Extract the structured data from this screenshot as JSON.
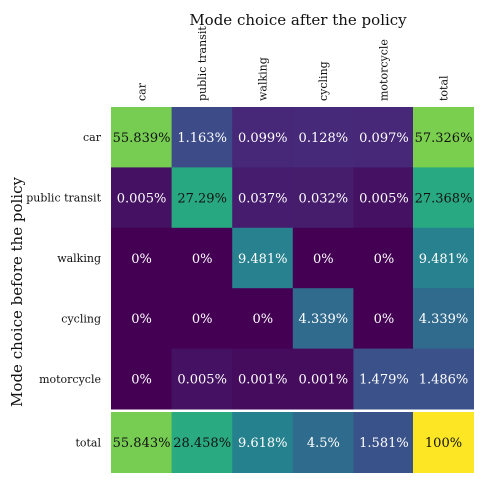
{
  "chart_data": {
    "type": "heatmap",
    "title": "Mode choice after the policy",
    "ylabel": "Mode choice before the policy",
    "columns": [
      "car",
      "public transit",
      "walking",
      "cycling",
      "motorcycle"
    ],
    "rows": [
      "car",
      "public transit",
      "walking",
      "cycling",
      "motorcycle"
    ],
    "total_label": "total",
    "values": [
      [
        55.839,
        1.163,
        0.099,
        0.128,
        0.097
      ],
      [
        0.005,
        27.29,
        0.037,
        0.032,
        0.005
      ],
      [
        0,
        0,
        9.481,
        0,
        0
      ],
      [
        0,
        0,
        0,
        4.339,
        0
      ],
      [
        0,
        0.005,
        0.001,
        0.001,
        1.479
      ]
    ],
    "cell_labels": [
      [
        "55.839%",
        "1.163%",
        "0.099%",
        "0.128%",
        "0.097%"
      ],
      [
        "0.005%",
        "27.29%",
        "0.037%",
        "0.032%",
        "0.005%"
      ],
      [
        "0%",
        "0%",
        "9.481%",
        "0%",
        "0%"
      ],
      [
        "0%",
        "0%",
        "0%",
        "4.339%",
        "0%"
      ],
      [
        "0%",
        "0.005%",
        "0.001%",
        "0.001%",
        "1.479%"
      ]
    ],
    "row_totals": [
      57.326,
      27.368,
      9.481,
      4.339,
      1.486
    ],
    "row_total_labels": [
      "57.326%",
      "27.368%",
      "9.481%",
      "4.339%",
      "1.486%"
    ],
    "col_totals": [
      55.843,
      28.458,
      9.618,
      4.5,
      1.581
    ],
    "col_total_labels": [
      "55.843%",
      "28.458%",
      "9.618%",
      "4.5%",
      "1.581%"
    ],
    "grand_total": 100,
    "grand_total_label": "100%",
    "colormap": "viridis"
  }
}
